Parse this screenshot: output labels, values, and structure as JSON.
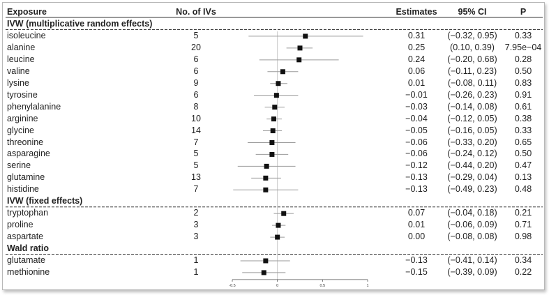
{
  "chart_data": {
    "type": "forest",
    "columns": {
      "exposure": "Exposure",
      "n_ivs": "No. of IVs",
      "estimates": "Estimates",
      "ci": "95% CI",
      "p": "P"
    },
    "groups": [
      {
        "name": "IVW (multiplicative random effects)",
        "rows": [
          {
            "exposure": "isoleucine",
            "n": "5",
            "est": 0.31,
            "est_text": "0.31",
            "lo": -0.32,
            "hi": 0.95,
            "ci_text": "(−0.32, 0.95)",
            "p": "0.33"
          },
          {
            "exposure": "alanine",
            "n": "20",
            "est": 0.25,
            "est_text": "0.25",
            "lo": 0.1,
            "hi": 0.39,
            "ci_text": "(0.10, 0.39)",
            "p": "7.95e−04"
          },
          {
            "exposure": "leucine",
            "n": "6",
            "est": 0.24,
            "est_text": "0.24",
            "lo": -0.2,
            "hi": 0.68,
            "ci_text": "(−0.20, 0.68)",
            "p": "0.28"
          },
          {
            "exposure": "valine",
            "n": "6",
            "est": 0.06,
            "est_text": "0.06",
            "lo": -0.11,
            "hi": 0.23,
            "ci_text": "(−0.11, 0.23)",
            "p": "0.50"
          },
          {
            "exposure": "lysine",
            "n": "9",
            "est": 0.01,
            "est_text": "0.01",
            "lo": -0.08,
            "hi": 0.11,
            "ci_text": "(−0.08, 0.11)",
            "p": "0.83"
          },
          {
            "exposure": "tyrosine",
            "n": "6",
            "est": -0.01,
            "est_text": "−0.01",
            "lo": -0.26,
            "hi": 0.23,
            "ci_text": "(−0.26, 0.23)",
            "p": "0.91"
          },
          {
            "exposure": "phenylalanine",
            "n": "8",
            "est": -0.03,
            "est_text": "−0.03",
            "lo": -0.14,
            "hi": 0.08,
            "ci_text": "(−0.14, 0.08)",
            "p": "0.61"
          },
          {
            "exposure": "arginine",
            "n": "10",
            "est": -0.04,
            "est_text": "−0.04",
            "lo": -0.12,
            "hi": 0.05,
            "ci_text": "(−0.12, 0.05)",
            "p": "0.38"
          },
          {
            "exposure": "glycine",
            "n": "14",
            "est": -0.05,
            "est_text": "−0.05",
            "lo": -0.16,
            "hi": 0.05,
            "ci_text": "(−0.16, 0.05)",
            "p": "0.33"
          },
          {
            "exposure": "threonine",
            "n": "7",
            "est": -0.06,
            "est_text": "−0.06",
            "lo": -0.33,
            "hi": 0.2,
            "ci_text": "(−0.33, 0.20)",
            "p": "0.65"
          },
          {
            "exposure": "asparagine",
            "n": "5",
            "est": -0.06,
            "est_text": "−0.06",
            "lo": -0.24,
            "hi": 0.12,
            "ci_text": "(−0.24, 0.12)",
            "p": "0.50"
          },
          {
            "exposure": "serine",
            "n": "5",
            "est": -0.12,
            "est_text": "−0.12",
            "lo": -0.44,
            "hi": 0.2,
            "ci_text": "(−0.44, 0.20)",
            "p": "0.47"
          },
          {
            "exposure": "glutamine",
            "n": "13",
            "est": -0.13,
            "est_text": "−0.13",
            "lo": -0.29,
            "hi": 0.04,
            "ci_text": "(−0.29, 0.04)",
            "p": "0.13"
          },
          {
            "exposure": "histidine",
            "n": "7",
            "est": -0.13,
            "est_text": "−0.13",
            "lo": -0.49,
            "hi": 0.23,
            "ci_text": "(−0.49, 0.23)",
            "p": "0.48"
          }
        ]
      },
      {
        "name": "IVW (fixed effects)",
        "rows": [
          {
            "exposure": "tryptophan",
            "n": "2",
            "est": 0.07,
            "est_text": "0.07",
            "lo": -0.04,
            "hi": 0.18,
            "ci_text": "(−0.04, 0.18)",
            "p": "0.21"
          },
          {
            "exposure": "proline",
            "n": "3",
            "est": 0.01,
            "est_text": "0.01",
            "lo": -0.06,
            "hi": 0.09,
            "ci_text": "(−0.06, 0.09)",
            "p": "0.71"
          },
          {
            "exposure": "aspartate",
            "n": "3",
            "est": 0.0,
            "est_text": "0.00",
            "lo": -0.08,
            "hi": 0.08,
            "ci_text": "(−0.08, 0.08)",
            "p": "0.98"
          }
        ]
      },
      {
        "name": "Wald ratio",
        "rows": [
          {
            "exposure": "glutamate",
            "n": "1",
            "est": -0.13,
            "est_text": "−0.13",
            "lo": -0.41,
            "hi": 0.14,
            "ci_text": "(−0.41, 0.14)",
            "p": "0.34"
          },
          {
            "exposure": "methionine",
            "n": "1",
            "est": -0.15,
            "est_text": "−0.15",
            "lo": -0.39,
            "hi": 0.09,
            "ci_text": "(−0.39, 0.09)",
            "p": "0.22"
          }
        ]
      }
    ],
    "x_ticks": [
      -0.5,
      0,
      0.5,
      1
    ],
    "x_tick_labels": [
      "-0.5",
      "0",
      "0.5",
      "1"
    ],
    "xlim": [
      -0.52,
      1.0
    ],
    "reference_line": 0,
    "colors": {
      "point": "#111111",
      "ci_line": "#9a9a9a",
      "ref_line": "#c8c8c8",
      "section_rule": "#333333"
    }
  }
}
